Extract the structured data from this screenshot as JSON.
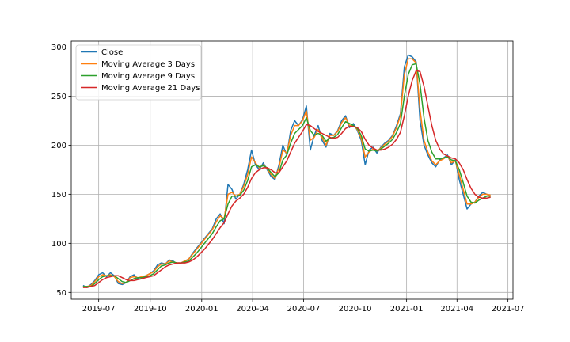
{
  "chart_data": {
    "type": "line",
    "title": "",
    "xlabel": "",
    "ylabel": "",
    "x_type": "date",
    "xlim": [
      "2019-05-13",
      "2021-07-10"
    ],
    "ylim": [
      43,
      306
    ],
    "grid": true,
    "legend_position": "top-left",
    "x_ticks": [
      {
        "date": "2019-07-01",
        "label": "2019-07"
      },
      {
        "date": "2019-10-01",
        "label": "2019-10"
      },
      {
        "date": "2020-01-01",
        "label": "2020-01"
      },
      {
        "date": "2020-04-01",
        "label": "2020-04"
      },
      {
        "date": "2020-07-01",
        "label": "2020-07"
      },
      {
        "date": "2020-10-01",
        "label": "2020-10"
      },
      {
        "date": "2021-01-01",
        "label": "2021-01"
      },
      {
        "date": "2021-04-01",
        "label": "2021-04"
      },
      {
        "date": "2021-07-01",
        "label": "2021-07"
      }
    ],
    "y_ticks": [
      {
        "value": 50,
        "label": "50"
      },
      {
        "value": 100,
        "label": "100"
      },
      {
        "value": 150,
        "label": "150"
      },
      {
        "value": 200,
        "label": "200"
      },
      {
        "value": 250,
        "label": "250"
      },
      {
        "value": 300,
        "label": "300"
      }
    ],
    "x": [
      "2019-06-03",
      "2019-06-10",
      "2019-06-17",
      "2019-06-24",
      "2019-07-01",
      "2019-07-08",
      "2019-07-15",
      "2019-07-22",
      "2019-07-29",
      "2019-08-05",
      "2019-08-12",
      "2019-08-19",
      "2019-08-26",
      "2019-09-02",
      "2019-09-09",
      "2019-09-16",
      "2019-09-23",
      "2019-09-30",
      "2019-10-07",
      "2019-10-14",
      "2019-10-21",
      "2019-10-28",
      "2019-11-04",
      "2019-11-11",
      "2019-11-18",
      "2019-11-25",
      "2019-12-02",
      "2019-12-09",
      "2019-12-16",
      "2019-12-23",
      "2019-12-30",
      "2020-01-06",
      "2020-01-13",
      "2020-01-20",
      "2020-01-27",
      "2020-02-03",
      "2020-02-10",
      "2020-02-17",
      "2020-02-24",
      "2020-03-02",
      "2020-03-09",
      "2020-03-16",
      "2020-03-23",
      "2020-03-30",
      "2020-04-06",
      "2020-04-13",
      "2020-04-20",
      "2020-04-27",
      "2020-05-04",
      "2020-05-11",
      "2020-05-18",
      "2020-05-25",
      "2020-06-01",
      "2020-06-08",
      "2020-06-15",
      "2020-06-22",
      "2020-06-29",
      "2020-07-06",
      "2020-07-13",
      "2020-07-20",
      "2020-07-27",
      "2020-08-03",
      "2020-08-10",
      "2020-08-17",
      "2020-08-24",
      "2020-08-31",
      "2020-09-07",
      "2020-09-14",
      "2020-09-21",
      "2020-09-28",
      "2020-10-05",
      "2020-10-12",
      "2020-10-19",
      "2020-10-26",
      "2020-11-02",
      "2020-11-09",
      "2020-11-16",
      "2020-11-23",
      "2020-11-30",
      "2020-12-07",
      "2020-12-14",
      "2020-12-21",
      "2020-12-28",
      "2021-01-04",
      "2021-01-11",
      "2021-01-18",
      "2021-01-25",
      "2021-02-01",
      "2021-02-08",
      "2021-02-15",
      "2021-02-22",
      "2021-03-01",
      "2021-03-08",
      "2021-03-15",
      "2021-03-22",
      "2021-03-29",
      "2021-04-05",
      "2021-04-12",
      "2021-04-19",
      "2021-04-26",
      "2021-05-03",
      "2021-05-10",
      "2021-05-17",
      "2021-05-24",
      "2021-05-31"
    ],
    "series": [
      {
        "name": "Close",
        "color": "#1f77b4",
        "values": [
          57,
          55,
          58,
          62,
          68,
          70,
          66,
          70,
          67,
          59,
          58,
          60,
          66,
          68,
          64,
          66,
          67,
          69,
          72,
          78,
          80,
          79,
          83,
          82,
          79,
          80,
          82,
          84,
          90,
          95,
          100,
          105,
          110,
          115,
          125,
          130,
          120,
          160,
          155,
          145,
          150,
          160,
          175,
          195,
          180,
          175,
          182,
          175,
          168,
          165,
          180,
          200,
          190,
          215,
          225,
          220,
          226,
          240,
          195,
          210,
          220,
          205,
          198,
          212,
          210,
          215,
          225,
          230,
          218,
          222,
          215,
          205,
          180,
          195,
          198,
          192,
          198,
          202,
          205,
          210,
          220,
          232,
          280,
          292,
          290,
          285,
          225,
          200,
          190,
          182,
          178,
          185,
          187,
          190,
          180,
          185,
          165,
          150,
          135,
          140,
          142,
          148,
          152,
          150,
          148
        ]
      },
      {
        "name": "Moving Average 3 Days",
        "color": "#ff7f0e",
        "values": [
          56,
          56,
          57,
          61,
          66,
          68,
          67,
          68,
          66,
          61,
          59,
          60,
          65,
          66,
          65,
          66,
          67,
          69,
          71,
          76,
          79,
          79,
          82,
          81,
          80,
          80,
          82,
          84,
          89,
          94,
          99,
          104,
          109,
          114,
          122,
          128,
          125,
          150,
          152,
          148,
          150,
          158,
          170,
          188,
          182,
          177,
          180,
          176,
          170,
          166,
          177,
          195,
          192,
          210,
          220,
          220,
          225,
          235,
          205,
          208,
          216,
          208,
          200,
          210,
          210,
          214,
          223,
          228,
          220,
          220,
          216,
          207,
          188,
          193,
          196,
          194,
          197,
          201,
          204,
          209,
          218,
          230,
          272,
          288,
          288,
          284,
          236,
          205,
          193,
          184,
          180,
          184,
          186,
          189,
          182,
          184,
          170,
          155,
          140,
          140,
          142,
          147,
          150,
          150,
          149
        ]
      },
      {
        "name": "Moving Average 9 Days",
        "color": "#2ca02c",
        "values": [
          56,
          56,
          56,
          59,
          63,
          66,
          67,
          67,
          67,
          64,
          61,
          60,
          62,
          64,
          65,
          65,
          66,
          67,
          69,
          73,
          77,
          78,
          80,
          81,
          80,
          80,
          81,
          82,
          86,
          90,
          95,
          100,
          105,
          110,
          117,
          123,
          125,
          140,
          148,
          148,
          149,
          154,
          164,
          178,
          180,
          178,
          179,
          177,
          172,
          168,
          172,
          185,
          190,
          202,
          212,
          216,
          220,
          228,
          215,
          210,
          212,
          210,
          204,
          207,
          208,
          211,
          218,
          224,
          222,
          220,
          217,
          210,
          196,
          194,
          195,
          194,
          196,
          199,
          202,
          206,
          213,
          222,
          250,
          272,
          282,
          283,
          262,
          228,
          205,
          193,
          186,
          186,
          187,
          188,
          185,
          184,
          175,
          162,
          148,
          142,
          141,
          144,
          146,
          148,
          148
        ]
      },
      {
        "name": "Moving Average 21 Days",
        "color": "#d62728",
        "values": [
          55,
          55,
          56,
          57,
          60,
          63,
          65,
          66,
          67,
          67,
          65,
          63,
          62,
          62,
          63,
          64,
          65,
          66,
          67,
          70,
          73,
          76,
          78,
          79,
          80,
          80,
          80,
          81,
          83,
          86,
          90,
          94,
          99,
          104,
          110,
          116,
          121,
          130,
          138,
          143,
          146,
          150,
          157,
          166,
          172,
          175,
          177,
          177,
          175,
          172,
          172,
          178,
          184,
          193,
          202,
          208,
          214,
          221,
          220,
          217,
          214,
          212,
          210,
          208,
          207,
          208,
          212,
          217,
          219,
          219,
          218,
          214,
          206,
          200,
          197,
          195,
          195,
          196,
          198,
          201,
          206,
          213,
          230,
          250,
          266,
          276,
          275,
          260,
          240,
          220,
          205,
          196,
          191,
          189,
          187,
          186,
          182,
          175,
          165,
          156,
          150,
          147,
          146,
          146,
          147
        ]
      }
    ]
  }
}
